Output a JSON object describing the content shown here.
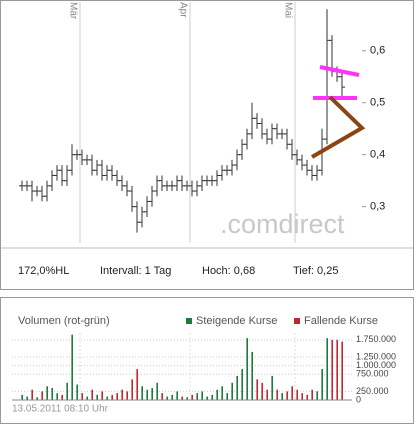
{
  "chart_data": [
    {
      "type": "ohlc",
      "categories": [
        null,
        null,
        null,
        null,
        null,
        null,
        null,
        null,
        null,
        null,
        null,
        null,
        "Mär",
        null,
        null,
        null,
        null,
        null,
        null,
        null,
        null,
        null,
        null,
        null,
        null,
        null,
        null,
        null,
        null,
        null,
        null,
        null,
        null,
        null,
        "Apr",
        null,
        null,
        null,
        null,
        null,
        null,
        null,
        null,
        null,
        null,
        null,
        null,
        null,
        null,
        null,
        null,
        null,
        null,
        null,
        null,
        "Mai",
        null,
        null,
        null,
        null,
        null,
        null,
        null,
        null,
        null
      ],
      "open": [
        0.34,
        0.34,
        0.34,
        0.33,
        0.33,
        0.32,
        0.34,
        0.36,
        0.37,
        0.35,
        0.37,
        0.4,
        0.4,
        0.39,
        0.39,
        0.37,
        0.38,
        0.36,
        0.37,
        0.36,
        0.35,
        0.34,
        0.33,
        0.3,
        0.27,
        0.29,
        0.31,
        0.33,
        0.35,
        0.34,
        0.34,
        0.34,
        0.35,
        0.34,
        0.34,
        0.33,
        0.34,
        0.35,
        0.35,
        0.35,
        0.36,
        0.37,
        0.37,
        0.38,
        0.4,
        0.42,
        0.44,
        0.47,
        0.46,
        0.44,
        0.43,
        0.45,
        0.44,
        0.44,
        0.42,
        0.4,
        0.39,
        0.38,
        0.37,
        0.36,
        0.37,
        0.43,
        0.62,
        0.56,
        0.55
      ],
      "high": [
        0.35,
        0.35,
        0.35,
        0.34,
        0.34,
        0.35,
        0.37,
        0.38,
        0.38,
        0.38,
        0.42,
        0.41,
        0.41,
        0.4,
        0.4,
        0.39,
        0.39,
        0.38,
        0.38,
        0.37,
        0.36,
        0.35,
        0.34,
        0.31,
        0.3,
        0.32,
        0.34,
        0.36,
        0.36,
        0.35,
        0.35,
        0.36,
        0.36,
        0.35,
        0.35,
        0.35,
        0.36,
        0.36,
        0.36,
        0.37,
        0.38,
        0.38,
        0.39,
        0.41,
        0.43,
        0.45,
        0.5,
        0.48,
        0.47,
        0.45,
        0.46,
        0.46,
        0.45,
        0.45,
        0.43,
        0.41,
        0.4,
        0.39,
        0.38,
        0.38,
        0.45,
        0.68,
        0.63,
        0.57,
        0.56
      ],
      "low": [
        0.33,
        0.33,
        0.31,
        0.32,
        0.31,
        0.31,
        0.33,
        0.35,
        0.34,
        0.34,
        0.36,
        0.39,
        0.38,
        0.38,
        0.36,
        0.36,
        0.35,
        0.35,
        0.35,
        0.34,
        0.33,
        0.32,
        0.29,
        0.25,
        0.26,
        0.28,
        0.3,
        0.32,
        0.33,
        0.33,
        0.33,
        0.33,
        0.33,
        0.33,
        0.32,
        0.32,
        0.33,
        0.34,
        0.34,
        0.34,
        0.35,
        0.36,
        0.36,
        0.37,
        0.39,
        0.41,
        0.43,
        0.45,
        0.43,
        0.42,
        0.42,
        0.43,
        0.43,
        0.41,
        0.39,
        0.38,
        0.37,
        0.36,
        0.35,
        0.35,
        0.36,
        0.42,
        0.55,
        0.54,
        0.51
      ],
      "close": [
        0.34,
        0.34,
        0.33,
        0.33,
        0.32,
        0.34,
        0.36,
        0.37,
        0.35,
        0.37,
        0.4,
        0.4,
        0.39,
        0.39,
        0.37,
        0.38,
        0.36,
        0.37,
        0.36,
        0.35,
        0.34,
        0.33,
        0.3,
        0.27,
        0.29,
        0.31,
        0.33,
        0.35,
        0.34,
        0.34,
        0.34,
        0.35,
        0.34,
        0.34,
        0.33,
        0.34,
        0.35,
        0.35,
        0.35,
        0.36,
        0.37,
        0.37,
        0.38,
        0.4,
        0.42,
        0.44,
        0.47,
        0.46,
        0.44,
        0.43,
        0.45,
        0.44,
        0.44,
        0.42,
        0.4,
        0.39,
        0.38,
        0.37,
        0.36,
        0.37,
        0.43,
        0.62,
        0.56,
        0.55,
        0.53
      ],
      "color": "#333333",
      "ylim": [
        0.23,
        0.69
      ],
      "yticks": [
        {
          "value": 0.3,
          "label": "0,3"
        },
        {
          "value": 0.4,
          "label": "0,4"
        },
        {
          "value": 0.5,
          "label": "0,5"
        },
        {
          "value": 0.6,
          "label": "0,6"
        }
      ],
      "watermark": ".comdirect",
      "info": [
        "172,0%HL",
        "Intervall: 1 Tag",
        "Hoch: 0,68",
        "Tief: 0,25"
      ]
    },
    {
      "type": "bar",
      "title": "Volumen (rot-grün)",
      "series": [
        {
          "name": "Steigende Kurse",
          "color": "#1e7a3c",
          "values": [
            150000,
            100000,
            null,
            80000,
            null,
            400000,
            350000,
            200000,
            null,
            500000,
            1900000,
            450000,
            null,
            100000,
            null,
            150000,
            null,
            100000,
            null,
            null,
            null,
            null,
            null,
            null,
            400000,
            300000,
            350000,
            500000,
            null,
            100000,
            150000,
            250000,
            null,
            80000,
            null,
            200000,
            250000,
            100000,
            150000,
            300000,
            400000,
            200000,
            500000,
            700000,
            900000,
            1800000,
            1400000,
            null,
            null,
            null,
            700000,
            null,
            200000,
            null,
            null,
            null,
            null,
            null,
            null,
            250000,
            900000,
            1800000,
            null,
            null,
            null
          ]
        },
        {
          "name": "Fallende Kurse",
          "color": "#c0282d",
          "values": [
            null,
            null,
            300000,
            null,
            250000,
            null,
            null,
            null,
            150000,
            null,
            null,
            null,
            200000,
            null,
            300000,
            null,
            250000,
            null,
            150000,
            200000,
            300000,
            250000,
            600000,
            900000,
            null,
            null,
            null,
            null,
            200000,
            null,
            null,
            null,
            100000,
            null,
            150000,
            null,
            null,
            null,
            null,
            null,
            null,
            null,
            null,
            null,
            null,
            null,
            null,
            600000,
            500000,
            300000,
            null,
            300000,
            null,
            250000,
            400000,
            300000,
            200000,
            150000,
            300000,
            null,
            null,
            null,
            1750000,
            1750000,
            1700000
          ]
        }
      ],
      "ylim": [
        0,
        1950000
      ],
      "yticks": [
        0,
        {
          "value": 250000,
          "label": "250.000"
        },
        {
          "value": 750000,
          "label": "750.000"
        },
        {
          "value": 1000000,
          "label": "1.000.000"
        },
        {
          "value": 1250000,
          "label": "1.250.000"
        },
        {
          "value": 1750000,
          "label": "1.750.000"
        }
      ],
      "timestamp": "13.05.2011 08:10 Uhr"
    }
  ]
}
